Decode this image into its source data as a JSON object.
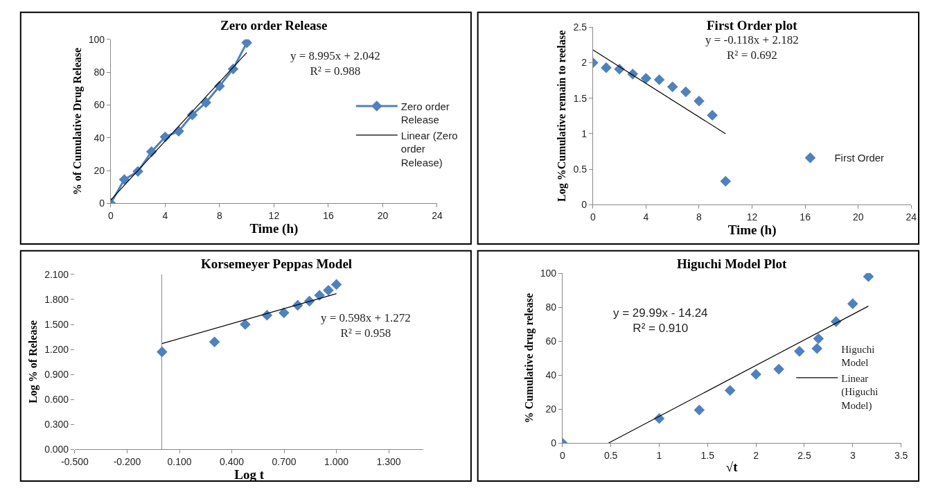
{
  "chart_data": [
    {
      "type": "line",
      "title": "Zero order Release",
      "xlabel": "Time (h)",
      "ylabel": "% of Cumulative Drug Release",
      "x": [
        0,
        1,
        2,
        3,
        4,
        5,
        6,
        7,
        8,
        9,
        10
      ],
      "series": [
        {
          "name": "Zero order Release",
          "marker": "diamond",
          "color": "#4f81bd",
          "values": [
            0,
            14.5,
            19.5,
            31.5,
            40.5,
            44,
            54,
            61.5,
            71.5,
            82,
            98
          ]
        },
        {
          "name": "Linear (Zero order Release)",
          "marker": "none",
          "color": "#000000",
          "x": [
            0,
            10
          ],
          "values": [
            2.04,
            91.99
          ]
        }
      ],
      "xlim": [
        0,
        24
      ],
      "xticks": [
        0,
        4,
        8,
        12,
        16,
        20,
        24
      ],
      "ylim": [
        0,
        100
      ],
      "yticks": [
        0,
        20,
        40,
        60,
        80,
        100
      ],
      "annotations": [
        "y = 8.995x + 2.042\nR² = 0.988"
      ],
      "grid": false,
      "legend": "right"
    },
    {
      "type": "scatter",
      "title": "First Order plot",
      "xlabel": "Time (h)",
      "ylabel": "Log %Cumulative remain to reelase",
      "x": [
        0,
        1,
        2,
        3,
        4,
        5,
        6,
        7,
        8,
        9,
        10
      ],
      "series": [
        {
          "name": "First Order",
          "marker": "diamond",
          "color": "#4f81bd",
          "values": [
            2.0,
            1.93,
            1.91,
            1.84,
            1.78,
            1.76,
            1.66,
            1.59,
            1.46,
            1.26,
            0.33
          ]
        },
        {
          "type": "line",
          "marker": "none",
          "color": "#000000",
          "x": [
            0,
            10
          ],
          "values": [
            2.18,
            1.0
          ]
        }
      ],
      "xlim": [
        0,
        24
      ],
      "xticks": [
        0,
        4,
        8,
        12,
        16,
        20,
        24
      ],
      "ylim": [
        0,
        2.5
      ],
      "yticks": [
        0,
        0.5,
        1,
        1.5,
        2,
        2.5
      ],
      "annotations": [
        "y = -0.118x + 2.182\nR² = 0.692"
      ],
      "grid": false,
      "legend": "right"
    },
    {
      "type": "scatter",
      "title": "Korsemeyer Peppas Model",
      "xlabel": "Log t",
      "ylabel": "Log % of Release",
      "x": [
        0,
        0.301,
        0.477,
        0.602,
        0.699,
        0.778,
        0.845,
        0.903,
        0.954,
        1.0
      ],
      "series": [
        {
          "marker": "diamond",
          "color": "#4f81bd",
          "values": [
            1.17,
            1.29,
            1.5,
            1.61,
            1.64,
            1.73,
            1.78,
            1.85,
            1.91,
            1.98
          ]
        },
        {
          "type": "line",
          "marker": "none",
          "color": "#000000",
          "x": [
            0,
            1.0
          ],
          "values": [
            1.27,
            1.87
          ]
        }
      ],
      "xlim": [
        -0.5,
        1.5
      ],
      "xticks": [
        {
          "value": -0.5,
          "label": "-0.500"
        },
        {
          "value": -0.2,
          "label": "-0.200"
        },
        {
          "value": 0.1,
          "label": "0.100"
        },
        {
          "value": 0.4,
          "label": "0.400"
        },
        {
          "value": 0.7,
          "label": "0.700"
        },
        {
          "value": 1.0,
          "label": "1.000"
        },
        {
          "value": 1.3,
          "label": "1.300"
        }
      ],
      "ylim": [
        0,
        2.1
      ],
      "yticks": [
        {
          "value": 0,
          "label": "0.000"
        },
        {
          "value": 0.3,
          "label": "0.300"
        },
        {
          "value": 0.6,
          "label": "0.600"
        },
        {
          "value": 0.9,
          "label": "0.900"
        },
        {
          "value": 1.2,
          "label": "1.200"
        },
        {
          "value": 1.5,
          "label": "1.500"
        },
        {
          "value": 1.8,
          "label": "1.800"
        },
        {
          "value": 2.1,
          "label": "2.100"
        }
      ],
      "annotations": [
        "y = 0.598x + 1.272\nR² = 0.958"
      ],
      "grid": false,
      "legend": false
    },
    {
      "type": "scatter",
      "title": "Higuchi Model Plot",
      "xlabel": "√t",
      "ylabel": "% Cumulative drug release",
      "x": [
        0,
        1,
        1.414,
        1.732,
        2,
        2.236,
        2.449,
        2.646,
        2.828,
        3,
        3.162
      ],
      "series": [
        {
          "name": "Higuchi Model",
          "marker": "diamond",
          "color": "#4f81bd",
          "values": [
            0,
            14.5,
            19.5,
            31,
            40.5,
            43.5,
            54,
            61.5,
            71.5,
            82,
            98
          ]
        },
        {
          "name": "Linear (Higuchi Model)",
          "type": "line",
          "marker": "none",
          "color": "#000000",
          "x": [
            0.475,
            3.162
          ],
          "values": [
            0,
            80.6
          ]
        }
      ],
      "xlim": [
        0,
        3.5
      ],
      "xticks": [
        0,
        0.5,
        1,
        1.5,
        2,
        2.5,
        3,
        3.5
      ],
      "ylim": [
        0,
        100
      ],
      "yticks": [
        0,
        20,
        40,
        60,
        80,
        100
      ],
      "annotations": [
        "y = 29.99x - 14.24\nR² = 0.910"
      ],
      "grid": false,
      "legend": "right"
    }
  ]
}
